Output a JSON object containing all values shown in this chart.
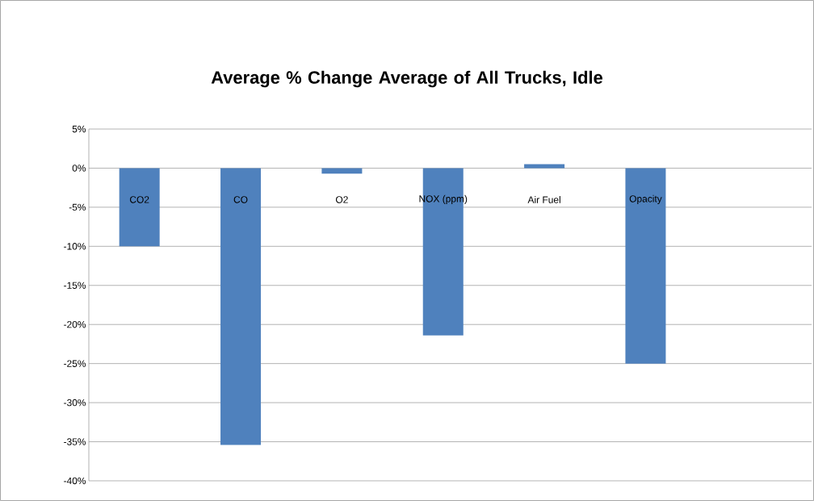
{
  "chart_data": {
    "type": "bar",
    "title": "Average % Change Average of All Trucks, Idle",
    "categories": [
      "CO2",
      "CO",
      "O2",
      "NOX (ppm)",
      "Air Fuel",
      "Opacity"
    ],
    "values": [
      -10,
      -35.4,
      -0.7,
      -21.4,
      0.5,
      -25
    ],
    "color": "#4f81bd",
    "ylim": [
      -40,
      5
    ],
    "yticks": [
      {
        "value": -40,
        "label": "-40%"
      },
      {
        "value": -35,
        "label": "-35%"
      },
      {
        "value": -30,
        "label": "-30%"
      },
      {
        "value": -25,
        "label": "-25%"
      },
      {
        "value": -20,
        "label": "-20%"
      },
      {
        "value": -15,
        "label": "-15%"
      },
      {
        "value": -10,
        "label": "-10%"
      },
      {
        "value": -5,
        "label": "-5%"
      },
      {
        "value": 0,
        "label": "0%"
      },
      {
        "value": 5,
        "label": "5%"
      }
    ],
    "grid": "y"
  }
}
